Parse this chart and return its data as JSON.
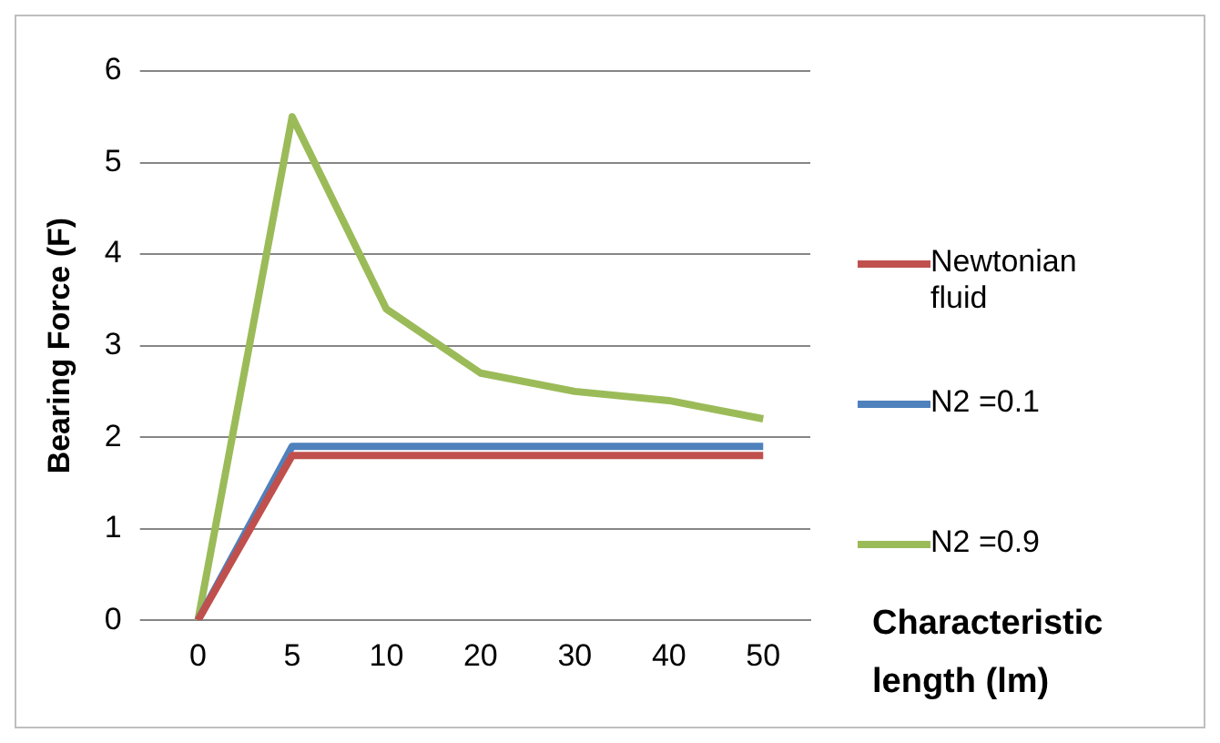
{
  "chart_data": {
    "type": "line",
    "xlabel": "Characteristic length (lm)",
    "ylabel": "Bearing Force (F)",
    "categories": [
      "0",
      "5",
      "10",
      "20",
      "30",
      "40",
      "50"
    ],
    "series": [
      {
        "name": "Newtonian fluid",
        "color": "#c0504d",
        "values": [
          0,
          1.8,
          1.8,
          1.8,
          1.8,
          1.8,
          1.8
        ]
      },
      {
        "name": "N2 =0.1",
        "color": "#4f81bd",
        "values": [
          0,
          1.9,
          1.9,
          1.9,
          1.9,
          1.9,
          1.9
        ]
      },
      {
        "name": "N2 =0.9",
        "color": "#9bbb59",
        "values": [
          0,
          5.5,
          3.4,
          2.7,
          2.5,
          2.4,
          2.2
        ]
      }
    ],
    "ylim": [
      0,
      6
    ],
    "yticks": [
      0,
      1,
      2,
      3,
      4,
      5,
      6
    ],
    "grid": "y",
    "legend": "right",
    "marker": "none",
    "line_style": "solid"
  }
}
